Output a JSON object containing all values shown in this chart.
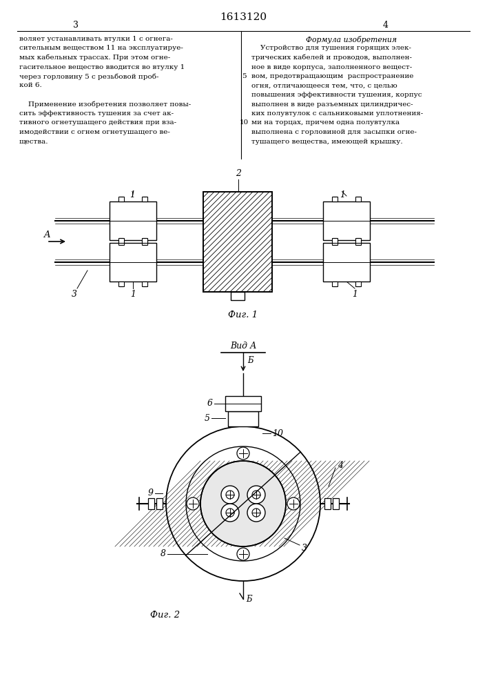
{
  "title": "1613120",
  "page_left": "3",
  "page_right": "4",
  "bg_color": "#ffffff",
  "line_color": "#000000",
  "fig1_caption": "Фиг. 1",
  "fig2_caption": "Фиг. 2",
  "view_label": "Вид А",
  "arrow_label": "A",
  "left_text_lines": [
    "воляет устанавливать втулки 1 с огнега-",
    "сительным веществом 11 на эксплуатируе-",
    "мых кабельных трассах. При этом огне-",
    "гасительное вещество вводится во втулку 1",
    "через горловину 5 с резьбовой проб-",
    "кой 6.",
    "",
    "    Применение изобретения позволяет повы-",
    "сить эффективность тушения за счет ак-",
    "тивного огнетушащего действия при вза-",
    "имодействии с огнем огнетушащего ве-",
    "щества."
  ],
  "right_title": "Формула изобретения",
  "right_text_lines": [
    "    Устройство для тушения горящих элек-",
    "трических кабелей и проводов, выполнен-",
    "ное в виде корпуса, заполненного вещест-",
    "вом, предотвращающим  распространение",
    "огня, отличающееся тем, что, с целью",
    "повышения эффективности тушения, корпус",
    "выполнен в виде разъемных цилиндричес-",
    "ких полувтулок с сальниковыми уплотнения-",
    "ми на торцах, причем одна полувтулка",
    "выполнена с горловиной для засыпки огне-",
    "тушащего вещества, имеющей крышку."
  ],
  "line_num_5": "5",
  "line_num_10": "10"
}
